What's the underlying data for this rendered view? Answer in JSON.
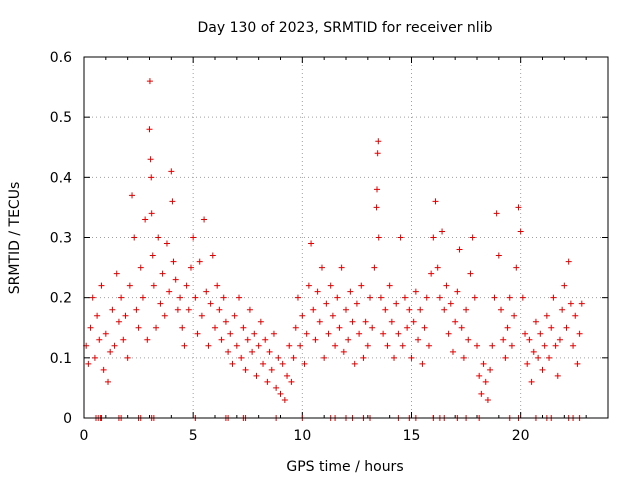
{
  "chart_data": {
    "type": "scatter",
    "title": "Day 130 of 2023, SRMTID for receiver nlib",
    "xlabel": "GPS time / hours",
    "ylabel": "SRMTID / TECUs",
    "xlim": [
      0,
      24
    ],
    "ylim": [
      0,
      0.6
    ],
    "xticks": [
      0,
      5,
      10,
      15,
      20
    ],
    "yticks": [
      0,
      0.1,
      0.2,
      0.3,
      0.4,
      0.5,
      0.6
    ],
    "xtick_labels": [
      "0",
      "5",
      "10",
      "15",
      "20"
    ],
    "ytick_labels": [
      "0",
      "0.1",
      "0.2",
      "0.3",
      "0.4",
      "0.5",
      "0.6"
    ],
    "grid": true,
    "marker": "plus",
    "series": [
      {
        "name": "SRMTID",
        "color": "#e00000",
        "points": [
          [
            0.1,
            0.12
          ],
          [
            0.2,
            0.09
          ],
          [
            0.3,
            0.15
          ],
          [
            0.4,
            0.2
          ],
          [
            0.5,
            0.1
          ],
          [
            0.6,
            0.17
          ],
          [
            0.7,
            0.13
          ],
          [
            0.8,
            0.22
          ],
          [
            0.9,
            0.08
          ],
          [
            1.0,
            0.14
          ],
          [
            1.1,
            0.06
          ],
          [
            1.2,
            0.11
          ],
          [
            1.3,
            0.18
          ],
          [
            1.4,
            0.12
          ],
          [
            1.5,
            0.24
          ],
          [
            1.6,
            0.16
          ],
          [
            1.7,
            0.2
          ],
          [
            1.8,
            0.13
          ],
          [
            1.9,
            0.17
          ],
          [
            2.0,
            0.1
          ],
          [
            2.1,
            0.22
          ],
          [
            2.2,
            0.37
          ],
          [
            2.3,
            0.3
          ],
          [
            2.4,
            0.18
          ],
          [
            2.5,
            0.15
          ],
          [
            2.6,
            0.25
          ],
          [
            2.7,
            0.2
          ],
          [
            2.8,
            0.33
          ],
          [
            2.9,
            0.13
          ],
          [
            3.0,
            0.48
          ],
          [
            3.02,
            0.56
          ],
          [
            3.05,
            0.43
          ],
          [
            3.08,
            0.4
          ],
          [
            3.1,
            0.34
          ],
          [
            3.15,
            0.27
          ],
          [
            3.2,
            0.22
          ],
          [
            3.3,
            0.15
          ],
          [
            3.4,
            0.3
          ],
          [
            3.5,
            0.19
          ],
          [
            3.6,
            0.24
          ],
          [
            3.7,
            0.17
          ],
          [
            3.8,
            0.29
          ],
          [
            3.9,
            0.21
          ],
          [
            4.0,
            0.41
          ],
          [
            4.05,
            0.36
          ],
          [
            4.1,
            0.26
          ],
          [
            4.2,
            0.23
          ],
          [
            4.3,
            0.18
          ],
          [
            4.4,
            0.2
          ],
          [
            4.5,
            0.15
          ],
          [
            4.6,
            0.12
          ],
          [
            4.7,
            0.22
          ],
          [
            4.8,
            0.18
          ],
          [
            4.9,
            0.25
          ],
          [
            5.0,
            0.3
          ],
          [
            5.1,
            0.2
          ],
          [
            5.2,
            0.14
          ],
          [
            5.3,
            0.26
          ],
          [
            5.4,
            0.17
          ],
          [
            5.5,
            0.33
          ],
          [
            5.6,
            0.21
          ],
          [
            5.7,
            0.12
          ],
          [
            5.8,
            0.19
          ],
          [
            5.9,
            0.27
          ],
          [
            6.0,
            0.15
          ],
          [
            6.1,
            0.22
          ],
          [
            6.2,
            0.18
          ],
          [
            6.3,
            0.13
          ],
          [
            6.4,
            0.2
          ],
          [
            6.5,
            0.16
          ],
          [
            6.6,
            0.11
          ],
          [
            6.7,
            0.14
          ],
          [
            6.8,
            0.09
          ],
          [
            6.9,
            0.17
          ],
          [
            7.0,
            0.12
          ],
          [
            7.1,
            0.2
          ],
          [
            7.2,
            0.1
          ],
          [
            7.3,
            0.15
          ],
          [
            7.4,
            0.08
          ],
          [
            7.5,
            0.13
          ],
          [
            7.6,
            0.18
          ],
          [
            7.7,
            0.11
          ],
          [
            7.8,
            0.14
          ],
          [
            7.9,
            0.07
          ],
          [
            8.0,
            0.12
          ],
          [
            8.1,
            0.16
          ],
          [
            8.2,
            0.09
          ],
          [
            8.3,
            0.13
          ],
          [
            8.4,
            0.06
          ],
          [
            8.5,
            0.11
          ],
          [
            8.6,
            0.08
          ],
          [
            8.7,
            0.14
          ],
          [
            8.8,
            0.05
          ],
          [
            8.9,
            0.1
          ],
          [
            9.0,
            0.04
          ],
          [
            9.1,
            0.09
          ],
          [
            9.2,
            0.03
          ],
          [
            9.3,
            0.07
          ],
          [
            9.4,
            0.12
          ],
          [
            9.5,
            0.06
          ],
          [
            9.6,
            0.1
          ],
          [
            9.7,
            0.15
          ],
          [
            9.8,
            0.2
          ],
          [
            9.9,
            0.12
          ],
          [
            10.0,
            0.17
          ],
          [
            10.1,
            0.09
          ],
          [
            10.2,
            0.14
          ],
          [
            10.3,
            0.22
          ],
          [
            10.4,
            0.29
          ],
          [
            10.5,
            0.18
          ],
          [
            10.6,
            0.13
          ],
          [
            10.7,
            0.21
          ],
          [
            10.8,
            0.16
          ],
          [
            10.9,
            0.25
          ],
          [
            11.0,
            0.1
          ],
          [
            11.1,
            0.19
          ],
          [
            11.2,
            0.14
          ],
          [
            11.3,
            0.22
          ],
          [
            11.4,
            0.17
          ],
          [
            11.5,
            0.12
          ],
          [
            11.6,
            0.2
          ],
          [
            11.7,
            0.15
          ],
          [
            11.8,
            0.25
          ],
          [
            11.9,
            0.11
          ],
          [
            12.0,
            0.18
          ],
          [
            12.1,
            0.13
          ],
          [
            12.2,
            0.21
          ],
          [
            12.3,
            0.16
          ],
          [
            12.4,
            0.09
          ],
          [
            12.5,
            0.19
          ],
          [
            12.6,
            0.14
          ],
          [
            12.7,
            0.22
          ],
          [
            12.8,
            0.1
          ],
          [
            12.9,
            0.16
          ],
          [
            13.0,
            0.12
          ],
          [
            13.1,
            0.2
          ],
          [
            13.2,
            0.15
          ],
          [
            13.3,
            0.25
          ],
          [
            13.4,
            0.35
          ],
          [
            13.42,
            0.38
          ],
          [
            13.45,
            0.44
          ],
          [
            13.48,
            0.46
          ],
          [
            13.5,
            0.3
          ],
          [
            13.6,
            0.2
          ],
          [
            13.7,
            0.14
          ],
          [
            13.8,
            0.18
          ],
          [
            13.9,
            0.12
          ],
          [
            14.0,
            0.22
          ],
          [
            14.1,
            0.16
          ],
          [
            14.2,
            0.1
          ],
          [
            14.3,
            0.19
          ],
          [
            14.4,
            0.14
          ],
          [
            14.5,
            0.3
          ],
          [
            14.6,
            0.12
          ],
          [
            14.7,
            0.2
          ],
          [
            14.8,
            0.15
          ],
          [
            14.9,
            0.18
          ],
          [
            15.0,
            0.1
          ],
          [
            15.1,
            0.16
          ],
          [
            15.2,
            0.21
          ],
          [
            15.3,
            0.13
          ],
          [
            15.4,
            0.18
          ],
          [
            15.5,
            0.09
          ],
          [
            15.6,
            0.15
          ],
          [
            15.7,
            0.2
          ],
          [
            15.8,
            0.12
          ],
          [
            15.9,
            0.24
          ],
          [
            16.0,
            0.3
          ],
          [
            16.1,
            0.36
          ],
          [
            16.2,
            0.25
          ],
          [
            16.3,
            0.2
          ],
          [
            16.4,
            0.31
          ],
          [
            16.5,
            0.18
          ],
          [
            16.6,
            0.22
          ],
          [
            16.7,
            0.14
          ],
          [
            16.8,
            0.19
          ],
          [
            16.9,
            0.11
          ],
          [
            17.0,
            0.16
          ],
          [
            17.1,
            0.21
          ],
          [
            17.2,
            0.28
          ],
          [
            17.3,
            0.15
          ],
          [
            17.4,
            0.1
          ],
          [
            17.5,
            0.18
          ],
          [
            17.6,
            0.13
          ],
          [
            17.7,
            0.24
          ],
          [
            17.8,
            0.3
          ],
          [
            17.9,
            0.2
          ],
          [
            18.0,
            0.12
          ],
          [
            18.1,
            0.07
          ],
          [
            18.2,
            0.04
          ],
          [
            18.3,
            0.09
          ],
          [
            18.4,
            0.06
          ],
          [
            18.5,
            0.03
          ],
          [
            18.6,
            0.08
          ],
          [
            18.7,
            0.12
          ],
          [
            18.8,
            0.2
          ],
          [
            18.9,
            0.34
          ],
          [
            19.0,
            0.27
          ],
          [
            19.1,
            0.18
          ],
          [
            19.2,
            0.13
          ],
          [
            19.3,
            0.1
          ],
          [
            19.4,
            0.15
          ],
          [
            19.5,
            0.2
          ],
          [
            19.6,
            0.12
          ],
          [
            19.7,
            0.17
          ],
          [
            19.8,
            0.25
          ],
          [
            19.9,
            0.35
          ],
          [
            20.0,
            0.31
          ],
          [
            20.1,
            0.2
          ],
          [
            20.2,
            0.14
          ],
          [
            20.3,
            0.09
          ],
          [
            20.4,
            0.13
          ],
          [
            20.5,
            0.06
          ],
          [
            20.6,
            0.11
          ],
          [
            20.7,
            0.16
          ],
          [
            20.8,
            0.1
          ],
          [
            20.9,
            0.14
          ],
          [
            21.0,
            0.08
          ],
          [
            21.1,
            0.12
          ],
          [
            21.2,
            0.17
          ],
          [
            21.3,
            0.1
          ],
          [
            21.4,
            0.15
          ],
          [
            21.5,
            0.2
          ],
          [
            21.6,
            0.12
          ],
          [
            21.7,
            0.07
          ],
          [
            21.8,
            0.13
          ],
          [
            21.9,
            0.18
          ],
          [
            22.0,
            0.22
          ],
          [
            22.1,
            0.15
          ],
          [
            22.2,
            0.26
          ],
          [
            22.3,
            0.19
          ],
          [
            22.4,
            0.12
          ],
          [
            22.5,
            0.17
          ],
          [
            22.6,
            0.09
          ],
          [
            22.7,
            0.14
          ],
          [
            22.8,
            0.19
          ]
        ],
        "zero_points": [
          0.55,
          0.65,
          0.75,
          0.8,
          1.6,
          1.7,
          2.5,
          2.6,
          3.1,
          3.2,
          5.1,
          6.5,
          6.6,
          7.3,
          7.4,
          8.8,
          10.0,
          11.3,
          11.5,
          12.0,
          12.3,
          12.8,
          13.1,
          14.4,
          14.9,
          15.2,
          16.0,
          16.3,
          16.5,
          17.1,
          17.5,
          18.1,
          19.5,
          19.9,
          20.7,
          21.2,
          21.4,
          22.2,
          22.4,
          22.7
        ]
      }
    ]
  }
}
